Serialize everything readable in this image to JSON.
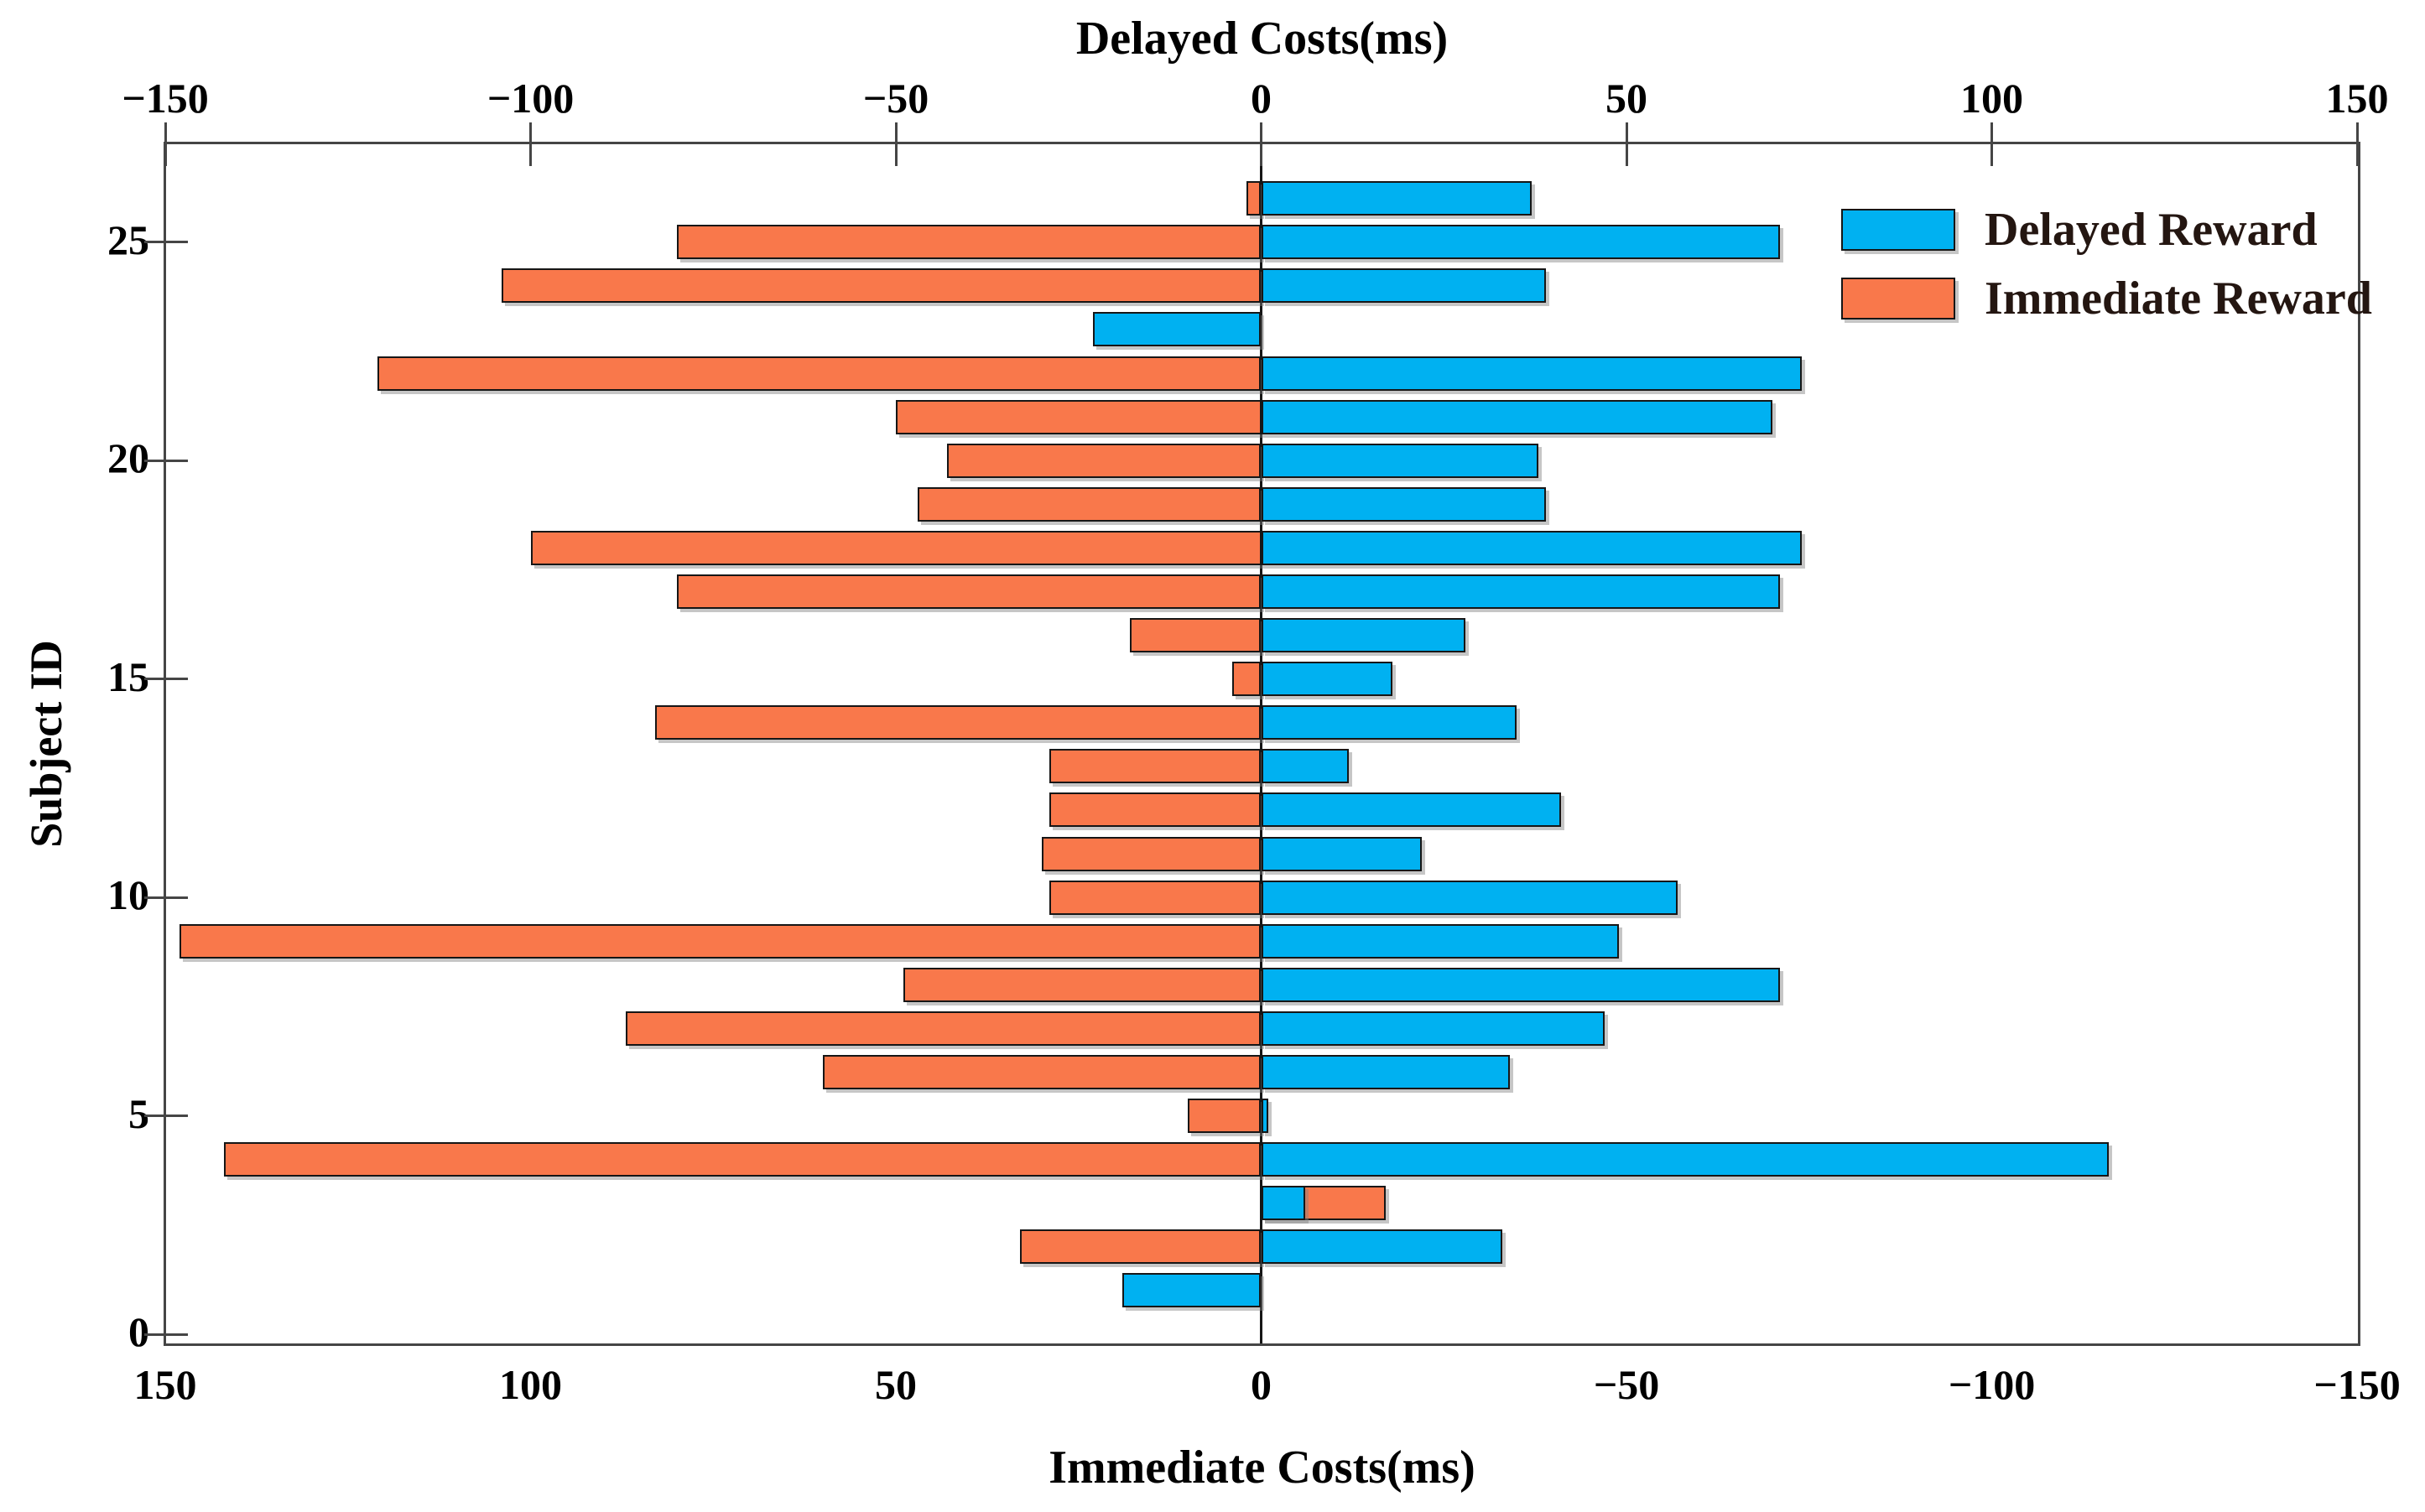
{
  "figure": {
    "top_axis": {
      "title": "Delayed Costs(ms)",
      "tick_labels": [
        "−150",
        "−100",
        "−50",
        "0",
        "50",
        "100",
        "150"
      ]
    },
    "bottom_axis": {
      "title": "Immediate Costs(ms)",
      "tick_labels": [
        "150",
        "100",
        "50",
        "0",
        "−50",
        "−100",
        "−150"
      ]
    },
    "y_axis": {
      "title": "Subject ID",
      "tick_labels": [
        "0",
        "5",
        "10",
        "15",
        "20",
        "25"
      ]
    },
    "legend": [
      {
        "label": "Delayed Reward",
        "color": "#00B1F1"
      },
      {
        "label": "Immediate Reward",
        "color": "#F9784B"
      }
    ]
  },
  "chart_data": {
    "type": "bar",
    "orientation": "horizontal-diverging",
    "title_top": "Delayed Costs(ms)",
    "title_bottom": "Immediate Costs(ms)",
    "ylabel": "Subject ID",
    "subjects": [
      1,
      2,
      3,
      4,
      5,
      6,
      7,
      8,
      9,
      10,
      11,
      12,
      13,
      14,
      15,
      16,
      17,
      18,
      19,
      20,
      21,
      22,
      23,
      24,
      25,
      26
    ],
    "top_axis_ticks": [
      -150,
      -100,
      -50,
      0,
      50,
      100,
      150
    ],
    "bottom_axis_ticks": [
      150,
      100,
      50,
      0,
      -50,
      -100,
      -150
    ],
    "y_axis_ticks": [
      0,
      5,
      10,
      15,
      20,
      25
    ],
    "top_axis_range": [
      -150,
      150
    ],
    "bottom_axis_range": [
      150,
      -150
    ],
    "ylim": [
      -0.3,
      27.2
    ],
    "grid": false,
    "legend_position": "upper right inside",
    "series": [
      {
        "name": "Delayed Reward",
        "axis": "top",
        "color": "#00B1F1",
        "values": [
          -19,
          33,
          6,
          116,
          1,
          34,
          47,
          71,
          49,
          57,
          22,
          41,
          12,
          35,
          18,
          28,
          71,
          74,
          39,
          38,
          70,
          74,
          -23,
          39,
          71,
          37
        ]
      },
      {
        "name": "Immediate Reward",
        "axis": "bottom-reversed",
        "color": "#F9784B",
        "values": [
          0,
          33,
          -17,
          142,
          10,
          60,
          87,
          49,
          148,
          29,
          30,
          29,
          29,
          83,
          4,
          18,
          80,
          100,
          47,
          43,
          50,
          121,
          0,
          104,
          80,
          2
        ]
      }
    ]
  }
}
